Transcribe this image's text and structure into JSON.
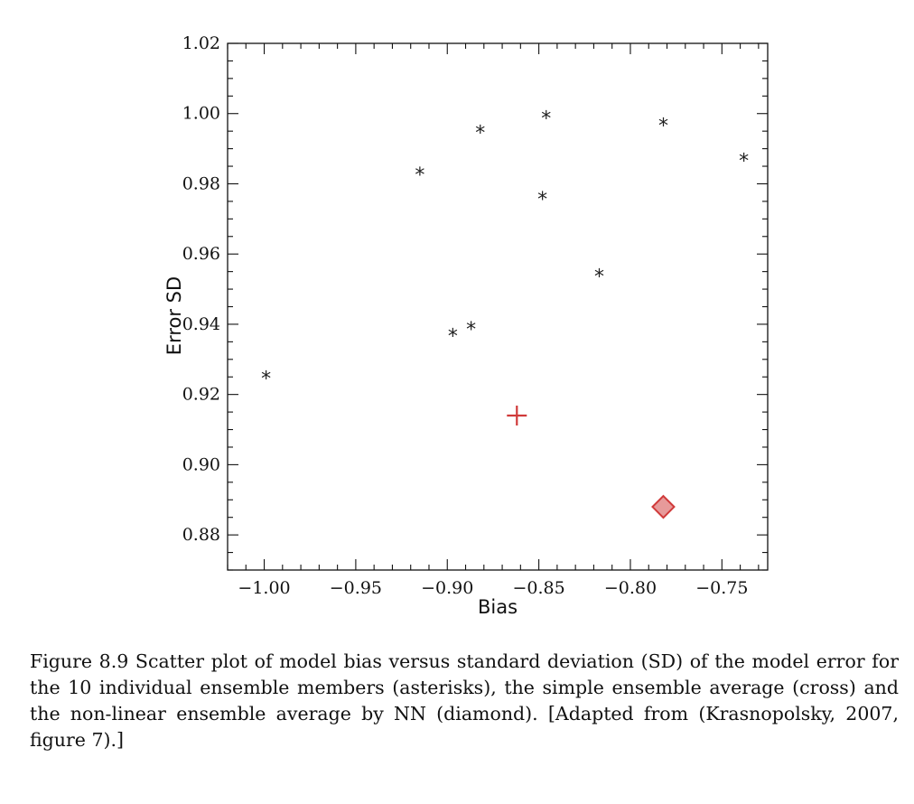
{
  "chart_data": {
    "type": "scatter",
    "xlabel": "Bias",
    "ylabel": "Error SD",
    "xlim": [
      -1.02,
      -0.725
    ],
    "ylim": [
      0.87,
      1.02
    ],
    "x_ticks": [
      -1.0,
      -0.95,
      -0.9,
      -0.85,
      -0.8,
      -0.75
    ],
    "x_tick_labels": [
      "−1.00",
      "−0.95",
      "−0.90",
      "−0.85",
      "−0.80",
      "−0.75"
    ],
    "y_ticks": [
      0.88,
      0.9,
      0.92,
      0.94,
      0.96,
      0.98,
      1.0,
      1.02
    ],
    "y_tick_labels": [
      "0.88",
      "0.90",
      "0.92",
      "0.94",
      "0.96",
      "0.98",
      "1.00",
      "1.02"
    ],
    "grid": false,
    "series": [
      {
        "marker": "asterisk",
        "color": "#222222",
        "points": [
          {
            "x": -0.999,
            "y": 0.926
          },
          {
            "x": -0.915,
            "y": 0.984
          },
          {
            "x": -0.897,
            "y": 0.938
          },
          {
            "x": -0.887,
            "y": 0.94
          },
          {
            "x": -0.882,
            "y": 0.996
          },
          {
            "x": -0.848,
            "y": 0.977
          },
          {
            "x": -0.846,
            "y": 1.0
          },
          {
            "x": -0.817,
            "y": 0.955
          },
          {
            "x": -0.782,
            "y": 0.998
          },
          {
            "x": -0.738,
            "y": 0.988
          }
        ]
      },
      {
        "marker": "cross",
        "color": "#d03a3a",
        "points": [
          {
            "x": -0.862,
            "y": 0.914
          }
        ]
      },
      {
        "marker": "diamond",
        "color": "#d03a3a",
        "fill": "#e79a9a",
        "points": [
          {
            "x": -0.782,
            "y": 0.888
          }
        ]
      }
    ]
  },
  "caption": {
    "text": "Figure 8.9 Scatter plot of model bias versus standard deviation (SD) of the model error for the 10 individual ensemble members (asterisks), the simple ensemble average (cross) and the non-linear ensemble average by NN (diamond). [Adapted from (Krasnopolsky, 2007, figure 7).]"
  }
}
